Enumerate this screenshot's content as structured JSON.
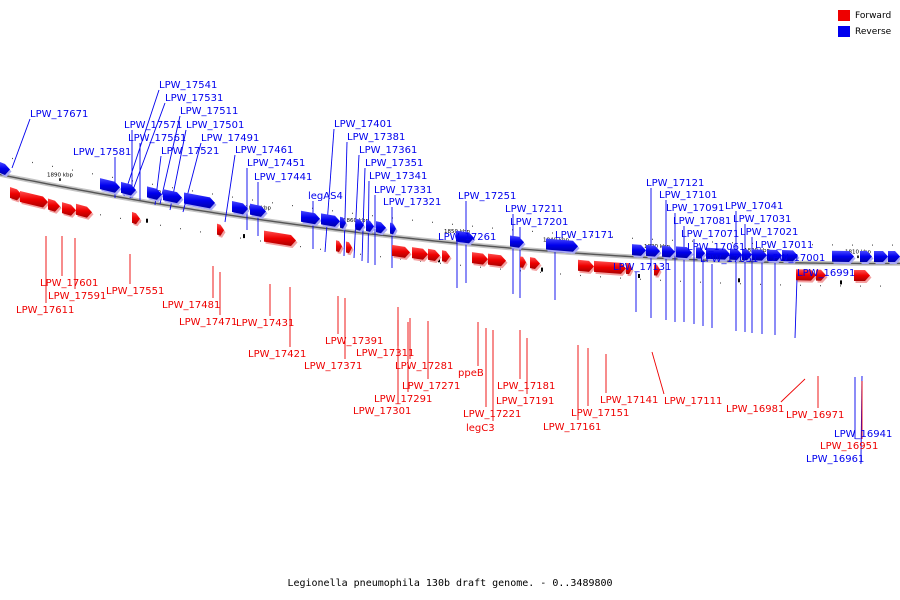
{
  "caption": "Legionella pneumophila 130b draft genome. - 0..3489800",
  "legend": {
    "forward": {
      "label": "Forward",
      "color": "#ee0000"
    },
    "reverse": {
      "label": "Reverse",
      "color": "#0000ee"
    }
  },
  "ticks": [
    "1890 kbp",
    "1880 kbp",
    "1870 kbp",
    "1860 kbp",
    "1850 kbp",
    "1840 kbp",
    "1830 kbp",
    "1820 kbp",
    "1810 kbp"
  ],
  "reverse_labels": [
    "LPW_17671",
    "LPW_17581",
    "LPW_17541",
    "LPW_17531",
    "LPW_17511",
    "LPW_17571",
    "LPW_17501",
    "LPW_17561",
    "LPW_17491",
    "LPW_17521",
    "LPW_17461",
    "LPW_17451",
    "LPW_17441",
    "legAS4",
    "LPW_17401",
    "LPW_17381",
    "LPW_17361",
    "LPW_17351",
    "LPW_17341",
    "LPW_17331",
    "LPW_17321",
    "LPW_17251",
    "LPW_17261",
    "LPW_17211",
    "LPW_17201",
    "LPW_17171",
    "LPW_17131",
    "LPW_17121",
    "LPW_17101",
    "LPW_17091",
    "LPW_17081",
    "LPW_17071",
    "LPW_17061",
    "LPW_17051",
    "LPW_17041",
    "LPW_17031",
    "LPW_17021",
    "LPW_17011",
    "LPW_17001",
    "LPW_16991",
    "LPW_16941",
    "LPW_16961"
  ],
  "forward_labels": [
    "LPW_17601",
    "LPW_17591",
    "LPW_17611",
    "LPW_17551",
    "LPW_17481",
    "LPW_17471",
    "LPW_17431",
    "LPW_17421",
    "LPW_17391",
    "LPW_17371",
    "LPW_17311",
    "LPW_17281",
    "LPW_17271",
    "LPW_17291",
    "LPW_17301",
    "ppeB",
    "LPW_17181",
    "LPW_17191",
    "LPW_17221",
    "legC3",
    "LPW_17141",
    "LPW_17151",
    "LPW_17161",
    "LPW_17111",
    "LPW_16981",
    "LPW_16971",
    "LPW_16951"
  ]
}
